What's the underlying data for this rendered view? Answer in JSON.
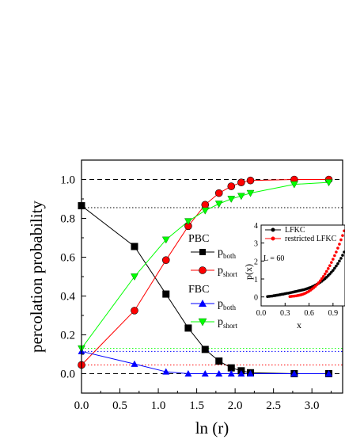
{
  "chart_data": [
    {
      "type": "line",
      "xlabel": "ln (r)",
      "ylabel": "percolation probability",
      "xlim": [
        0,
        3.4
      ],
      "ylim": [
        -0.1,
        1.1
      ],
      "xticks": [
        "0.0",
        "0.5",
        "1.0",
        "1.5",
        "2.0",
        "2.5",
        "3.0"
      ],
      "yticks": [
        "0.0",
        "0.2",
        "0.4",
        "0.6",
        "0.8",
        "1.0"
      ],
      "legend_groups": [
        {
          "title": "PBC",
          "placement": "center-right"
        },
        {
          "title": "FBC",
          "placement": "center-right"
        }
      ],
      "series": [
        {
          "group": "PBC",
          "name": "p",
          "subscript": "both",
          "color": "#000000",
          "marker": "square",
          "x": [
            0,
            0.69,
            1.1,
            1.39,
            1.61,
            1.79,
            1.95,
            2.08,
            2.2,
            2.77,
            3.22
          ],
          "y": [
            0.865,
            0.655,
            0.41,
            0.235,
            0.125,
            0.065,
            0.03,
            0.015,
            0.005,
            0.0,
            0.0
          ]
        },
        {
          "group": "PBC",
          "name": "p",
          "subscript": "short",
          "color": "#ff0000",
          "marker": "circle",
          "x": [
            0,
            0.69,
            1.1,
            1.39,
            1.61,
            1.79,
            1.95,
            2.08,
            2.2,
            2.77,
            3.22
          ],
          "y": [
            0.045,
            0.325,
            0.585,
            0.76,
            0.87,
            0.93,
            0.965,
            0.985,
            0.995,
            1.0,
            1.0
          ]
        },
        {
          "group": "FBC",
          "name": "p",
          "subscript": "both",
          "color": "#0000ff",
          "marker": "triangle-up",
          "x": [
            0,
            0.69,
            1.1,
            1.39,
            1.61,
            1.79,
            1.95,
            2.08,
            2.2,
            2.77,
            3.22
          ],
          "y": [
            0.115,
            0.05,
            0.01,
            0.0,
            0.0,
            0.0,
            0.0,
            0.0,
            0.0,
            0.0,
            0.0
          ]
        },
        {
          "group": "FBC",
          "name": "p",
          "subscript": "short",
          "color": "#00ff00",
          "marker": "triangle-down",
          "x": [
            0,
            0.69,
            1.1,
            1.39,
            1.61,
            1.79,
            1.95,
            2.08,
            2.2,
            2.77,
            3.22
          ],
          "y": [
            0.13,
            0.5,
            0.69,
            0.785,
            0.84,
            0.875,
            0.9,
            0.915,
            0.93,
            0.975,
            0.985
          ]
        }
      ],
      "reference_lines": [
        {
          "y": 1.0,
          "color": "#000000",
          "style": "dashed"
        },
        {
          "y": 0.0,
          "color": "#000000",
          "style": "dashed"
        },
        {
          "y": 0.855,
          "color": "#000000",
          "style": "dotted"
        },
        {
          "y": 0.13,
          "color": "#00ff00",
          "style": "dotted"
        },
        {
          "y": 0.115,
          "color": "#0000ff",
          "style": "dotted"
        },
        {
          "y": 0.045,
          "color": "#ff0000",
          "style": "dotted"
        }
      ]
    },
    {
      "type": "scatter",
      "annotation": "L = 60",
      "xlabel": "x",
      "ylabel": "p(x)",
      "xlim": [
        0,
        1.05
      ],
      "ylim": [
        -0.5,
        4
      ],
      "xticks": [
        "0.0",
        "0.3",
        "0.6",
        "0.9"
      ],
      "yticks": [
        "0",
        "1",
        "2",
        "3",
        "4"
      ],
      "legend_placement": "top",
      "series": [
        {
          "name": "LFKC",
          "color": "#000000",
          "x": [
            0.08,
            0.1,
            0.12,
            0.14,
            0.16,
            0.18,
            0.2,
            0.22,
            0.24,
            0.26,
            0.28,
            0.3,
            0.32,
            0.34,
            0.36,
            0.38,
            0.4,
            0.42,
            0.44,
            0.46,
            0.48,
            0.5,
            0.52,
            0.54,
            0.56,
            0.58,
            0.6,
            0.62,
            0.64,
            0.66,
            0.68,
            0.7,
            0.72,
            0.74,
            0.76,
            0.78,
            0.8,
            0.82,
            0.84,
            0.86,
            0.88,
            0.9,
            0.92,
            0.94,
            0.96,
            0.98,
            1.0,
            1.02,
            1.04
          ],
          "y": [
            0.02,
            0.03,
            0.04,
            0.05,
            0.07,
            0.08,
            0.1,
            0.11,
            0.13,
            0.15,
            0.16,
            0.18,
            0.2,
            0.21,
            0.23,
            0.25,
            0.27,
            0.29,
            0.31,
            0.33,
            0.35,
            0.37,
            0.39,
            0.41,
            0.44,
            0.47,
            0.5,
            0.53,
            0.57,
            0.61,
            0.66,
            0.71,
            0.76,
            0.82,
            0.88,
            0.95,
            1.02,
            1.1,
            1.19,
            1.28,
            1.38,
            1.48,
            1.6,
            1.72,
            1.85,
            2.0,
            2.15,
            2.32,
            2.5
          ]
        },
        {
          "name": "restricted LFKC",
          "color": "#ff0000",
          "x": [
            0.36,
            0.38,
            0.4,
            0.42,
            0.44,
            0.46,
            0.48,
            0.5,
            0.52,
            0.54,
            0.56,
            0.58,
            0.6,
            0.62,
            0.64,
            0.66,
            0.68,
            0.7,
            0.72,
            0.74,
            0.76,
            0.78,
            0.8,
            0.82,
            0.84,
            0.86,
            0.88,
            0.9,
            0.92,
            0.94,
            0.96,
            0.98,
            1.0,
            1.02,
            1.04
          ],
          "y": [
            0.02,
            0.03,
            0.04,
            0.05,
            0.06,
            0.08,
            0.1,
            0.12,
            0.15,
            0.18,
            0.22,
            0.27,
            0.32,
            0.38,
            0.45,
            0.52,
            0.6,
            0.69,
            0.79,
            0.9,
            1.02,
            1.14,
            1.28,
            1.42,
            1.58,
            1.74,
            1.92,
            2.1,
            2.3,
            2.5,
            2.72,
            2.94,
            3.18,
            3.42,
            3.68
          ]
        }
      ]
    }
  ]
}
